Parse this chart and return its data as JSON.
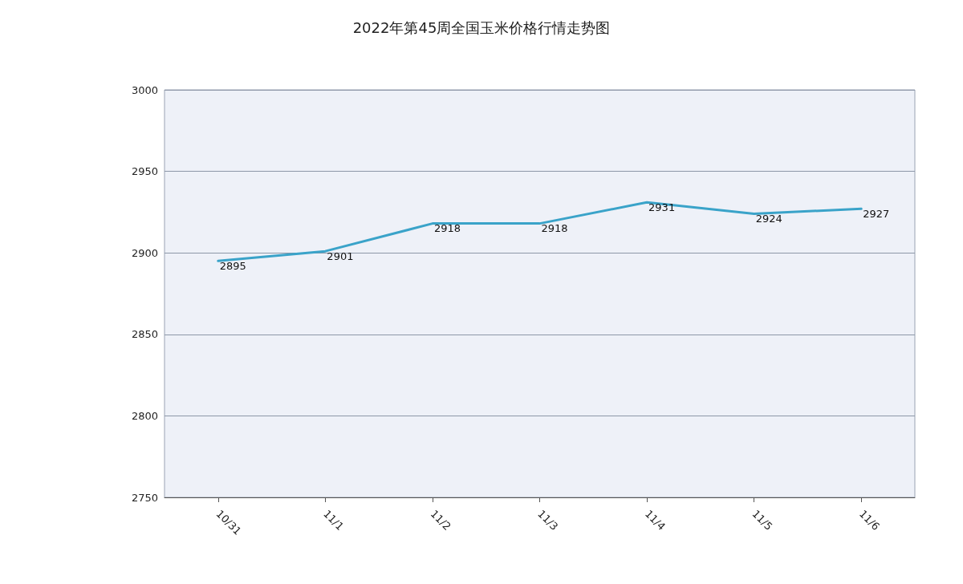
{
  "chart_data": {
    "type": "line",
    "title": "2022年第45周全国玉米价格行情走势图",
    "categories": [
      "10/31",
      "11/1",
      "11/2",
      "11/3",
      "11/4",
      "11/5",
      "11/6"
    ],
    "series": [
      {
        "color": "#3aa3c9",
        "values": [
          2895,
          2901,
          2918,
          2918,
          2931,
          2924,
          2927
        ]
      }
    ],
    "ylim": [
      2750,
      3000
    ],
    "yticks": [
      2750,
      2800,
      2850,
      2900,
      2950,
      3000
    ],
    "grid": "y",
    "data_labels": true,
    "marker": "none",
    "line_style": "solid"
  }
}
